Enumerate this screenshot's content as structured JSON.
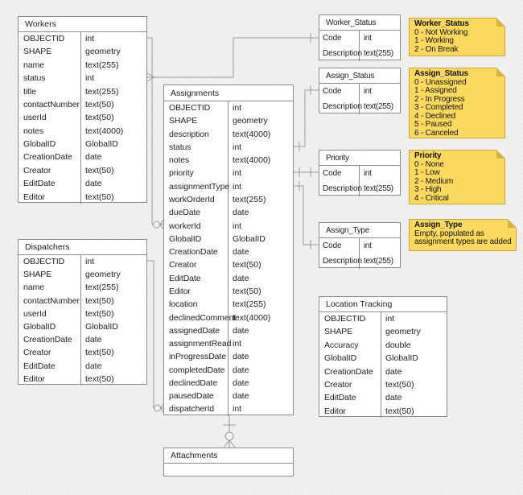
{
  "tables": {
    "workers": {
      "title": "Workers",
      "fields": [
        {
          "name": "OBJECTID",
          "type": "int"
        },
        {
          "name": "SHAPE",
          "type": "geometry"
        },
        {
          "name": "name",
          "type": "text(255)"
        },
        {
          "name": "status",
          "type": "int"
        },
        {
          "name": "title",
          "type": "text(255)"
        },
        {
          "name": "contactNumber",
          "type": "text(50)"
        },
        {
          "name": "userId",
          "type": "text(50)"
        },
        {
          "name": "notes",
          "type": "text(4000)"
        },
        {
          "name": "GlobalID",
          "type": "GlobalID"
        },
        {
          "name": "CreationDate",
          "type": "date"
        },
        {
          "name": "Creator",
          "type": "text(50)"
        },
        {
          "name": "EditDate",
          "type": "date"
        },
        {
          "name": "Editor",
          "type": "text(50)"
        }
      ]
    },
    "dispatchers": {
      "title": "Dispatchers",
      "fields": [
        {
          "name": "OBJECTID",
          "type": "int"
        },
        {
          "name": "SHAPE",
          "type": "geometry"
        },
        {
          "name": "name",
          "type": "text(255)"
        },
        {
          "name": "contactNumber",
          "type": "text(50)"
        },
        {
          "name": "userId",
          "type": "text(50)"
        },
        {
          "name": "GlobalID",
          "type": "GlobalID"
        },
        {
          "name": "CreationDate",
          "type": "date"
        },
        {
          "name": "Creator",
          "type": "text(50)"
        },
        {
          "name": "EditDate",
          "type": "date"
        },
        {
          "name": "Editor",
          "type": "text(50)"
        }
      ]
    },
    "assignments": {
      "title": "Assignments",
      "fields": [
        {
          "name": "OBJECTID",
          "type": "int"
        },
        {
          "name": "SHAPE",
          "type": "geometry"
        },
        {
          "name": "description",
          "type": "text(4000)"
        },
        {
          "name": "status",
          "type": "int"
        },
        {
          "name": "notes",
          "type": "text(4000)"
        },
        {
          "name": "priority",
          "type": "int"
        },
        {
          "name": "assignmentType",
          "type": "int"
        },
        {
          "name": "workOrderId",
          "type": "text(255)"
        },
        {
          "name": "dueDate",
          "type": "date"
        },
        {
          "name": "workerId",
          "type": "int"
        },
        {
          "name": "GlobalID",
          "type": "GlobalID"
        },
        {
          "name": "CreationDate",
          "type": "date"
        },
        {
          "name": "Creator",
          "type": "text(50)"
        },
        {
          "name": "EditDate",
          "type": "date"
        },
        {
          "name": "Editor",
          "type": "text(50)"
        },
        {
          "name": "location",
          "type": "text(255)"
        },
        {
          "name": "declinedComment",
          "type": "text(4000)"
        },
        {
          "name": "assignedDate",
          "type": "date"
        },
        {
          "name": "assignmentRead",
          "type": "int"
        },
        {
          "name": "inProgressDate",
          "type": "date"
        },
        {
          "name": "completedDate",
          "type": "date"
        },
        {
          "name": "declinedDate",
          "type": "date"
        },
        {
          "name": "pausedDate",
          "type": "date"
        },
        {
          "name": "dispatcherId",
          "type": "int"
        }
      ]
    },
    "worker_status": {
      "title": "Worker_Status",
      "fields": [
        {
          "name": "Code",
          "type": "int"
        },
        {
          "name": "Description",
          "type": "text(255)"
        }
      ]
    },
    "assign_status": {
      "title": "Assign_Status",
      "fields": [
        {
          "name": "Code",
          "type": "int"
        },
        {
          "name": "Description",
          "type": "text(255)"
        }
      ]
    },
    "priority": {
      "title": "Priority",
      "fields": [
        {
          "name": "Code",
          "type": "int"
        },
        {
          "name": "Description",
          "type": "text(255)"
        }
      ]
    },
    "assign_type": {
      "title": "Assign_Type",
      "fields": [
        {
          "name": "Code",
          "type": "int"
        },
        {
          "name": "Description",
          "type": "text(255)"
        }
      ]
    },
    "location_tracking": {
      "title": "Location Tracking",
      "fields": [
        {
          "name": "OBJECTID",
          "type": "int"
        },
        {
          "name": "SHAPE",
          "type": "geometry"
        },
        {
          "name": "Accuracy",
          "type": "double"
        },
        {
          "name": "GlobalID",
          "type": "GlobalID"
        },
        {
          "name": "CreationDate",
          "type": "date"
        },
        {
          "name": "Creator",
          "type": "text(50)"
        },
        {
          "name": "EditDate",
          "type": "date"
        },
        {
          "name": "Editor",
          "type": "text(50)"
        }
      ]
    },
    "attachments": {
      "title": "Attachments",
      "fields": []
    }
  },
  "notes": {
    "worker_status": {
      "title": "Worker_Status",
      "lines": [
        "0 - Not Working",
        "1 - Working",
        "2 - On Break"
      ]
    },
    "assign_status": {
      "title": "Assign_Status",
      "lines": [
        "0 - Unassigned",
        "1 - Assigned",
        "2 - In Progress",
        "3 - Completed",
        "4 - Declined",
        "5 - Paused",
        "6 - Canceled"
      ]
    },
    "priority": {
      "title": "Priority",
      "lines": [
        "0 - None",
        "1 - Low",
        "2 - Medium",
        "3 - High",
        "4 - Critical"
      ]
    },
    "assign_type": {
      "title": "Assign_Type",
      "lines": [
        "Empty, populated as",
        "assignment types are added"
      ]
    }
  },
  "relationships": [
    {
      "from": "Workers.status",
      "to": "Worker_Status.Code",
      "from_end": "many",
      "to_end": "one"
    },
    {
      "from": "Assignments.workerId",
      "to": "Workers.OBJECTID",
      "from_end": "zero-or-many",
      "to_end": "one"
    },
    {
      "from": "Assignments.dispatcherId",
      "to": "Dispatchers.OBJECTID",
      "from_end": "zero-or-many",
      "to_end": "one"
    },
    {
      "from": "Assignments.status",
      "to": "Assign_Status.Code",
      "from_end": "many",
      "to_end": "one"
    },
    {
      "from": "Assignments.priority",
      "to": "Priority.Code",
      "from_end": "many",
      "to_end": "one"
    },
    {
      "from": "Assignments.assignmentType",
      "to": "Assign_Type.Code",
      "from_end": "many",
      "to_end": "one"
    },
    {
      "from": "Attachments",
      "to": "Assignments",
      "from_end": "zero-or-many",
      "to_end": "one"
    }
  ],
  "colors": {
    "note_fill": "#fbd95f",
    "note_border": "#c7a73d",
    "note_fold": "#d9b13b",
    "table_border": "#8c8c8c",
    "connector": "#9a9a9a",
    "background": "#f1f1ef"
  }
}
